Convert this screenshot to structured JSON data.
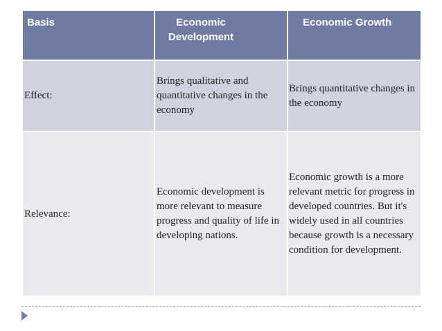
{
  "table": {
    "headers": [
      "Basis",
      "Economic Development",
      "Economic Growth"
    ],
    "rows": [
      {
        "basis": "Effect:",
        "development": "Brings qualitative and quantitative changes in the economy",
        "growth": "Brings quantitative changes in the economy"
      },
      {
        "basis": "Relevance:",
        "development": "Economic development is more relevant to measure progress and quality of life in developing nations.",
        "growth": "Economic growth is a more relevant metric for progress in developed countries. But it's widely used in all countries because growth is a necessary condition for development."
      }
    ]
  },
  "colors": {
    "header_bg": "#6f7ba3",
    "row1_bg": "#d0d3df",
    "row2_bg": "#e9eaf0",
    "bullet": "#6f7fae"
  },
  "icons": {
    "bullet": "triangle-right-icon"
  }
}
